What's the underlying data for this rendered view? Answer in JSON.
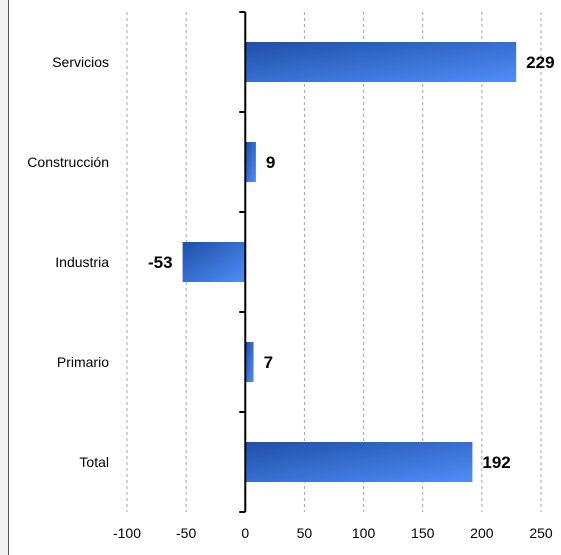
{
  "chart_data": {
    "type": "bar",
    "orientation": "horizontal",
    "categories": [
      "Servicios",
      "Construcción",
      "Industria",
      "Primario",
      "Total"
    ],
    "values": [
      229,
      9,
      -53,
      7,
      192
    ],
    "value_labels": [
      "229",
      "9",
      "-53",
      "7",
      "192"
    ],
    "title": "",
    "xlabel": "",
    "ylabel": "",
    "xlim": [
      -100,
      250
    ],
    "xticks": [
      -100,
      -50,
      0,
      50,
      100,
      150,
      200,
      250
    ],
    "xtick_labels": [
      "-100",
      "-50",
      "0",
      "50",
      "100",
      "150",
      "200",
      "250"
    ],
    "grid": "vertical-dashed",
    "legend": "none",
    "colors": {
      "bar_light": "#4f8df7",
      "bar_dark": "#1f4fa8",
      "grid": "#a6a6a6",
      "axis": "#000000"
    }
  }
}
